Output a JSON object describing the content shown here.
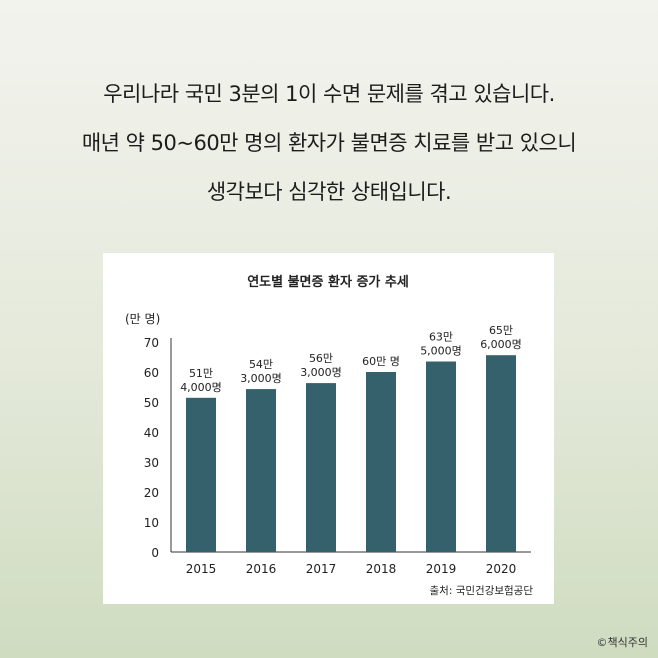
{
  "headline": {
    "line1": "우리나라 국민 3분의 1이 수면 문제를 겪고 있습니다.",
    "line2": "매년 약 50~60만 명의 환자가 불면증 치료를 받고 있으니",
    "line3": "생각보다 심각한 상태입니다."
  },
  "chart_data": {
    "type": "bar",
    "title": "연도별 불면증 환자 증가 추세",
    "ylabel": "(만 명)",
    "categories": [
      "2015",
      "2016",
      "2017",
      "2018",
      "2019",
      "2020"
    ],
    "values": [
      51.4,
      54.3,
      56.3,
      60,
      63.5,
      65.6
    ],
    "data_labels": [
      [
        "51만",
        "4,000명"
      ],
      [
        "54만",
        "3,000명"
      ],
      [
        "56만",
        "3,000명"
      ],
      [
        "60만 명"
      ],
      [
        "63만",
        "5,000명"
      ],
      [
        "65만",
        "6,000명"
      ]
    ],
    "ylim": [
      0,
      70
    ],
    "yticks": [
      0,
      10,
      20,
      30,
      40,
      50,
      60,
      70
    ],
    "bar_color": "#35616d",
    "grid": false,
    "source": "출처: 국민건강보험공단"
  },
  "copyright": "©책식주의"
}
